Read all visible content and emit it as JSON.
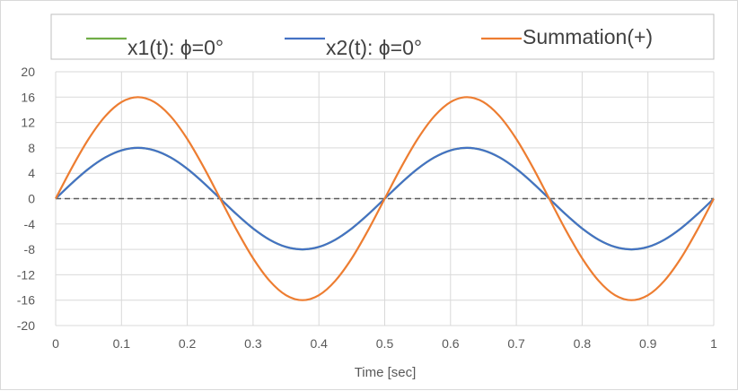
{
  "chart_data": {
    "type": "line",
    "title": "",
    "xlabel": "Time [sec]",
    "ylabel": "",
    "xlim": [
      0,
      1
    ],
    "ylim": [
      -20,
      20
    ],
    "xticks": [
      0,
      0.1,
      0.2,
      0.3,
      0.4,
      0.5,
      0.6,
      0.7,
      0.8,
      0.9,
      1
    ],
    "xtick_labels": [
      "0",
      "0.1",
      "0.2",
      "0.3",
      "0.4",
      "0.5",
      "0.6",
      "0.7",
      "0.8",
      "0.9",
      "1"
    ],
    "yticks": [
      20,
      16,
      12,
      8,
      4,
      0,
      -4,
      -8,
      -12,
      -16,
      -20
    ],
    "ytick_labels": [
      "20",
      "16",
      "12",
      "8",
      "4",
      "0",
      "-4",
      "-8",
      "-12",
      "-16",
      "-20"
    ],
    "grid": true,
    "legend_position": "top",
    "x": [
      0,
      0.025,
      0.05,
      0.075,
      0.1,
      0.125,
      0.15,
      0.175,
      0.2,
      0.225,
      0.25,
      0.275,
      0.3,
      0.325,
      0.35,
      0.375,
      0.4,
      0.425,
      0.45,
      0.475,
      0.5,
      0.525,
      0.55,
      0.575,
      0.6,
      0.625,
      0.65,
      0.675,
      0.7,
      0.725,
      0.75,
      0.775,
      0.8,
      0.825,
      0.85,
      0.875,
      0.9,
      0.925,
      0.95,
      0.975,
      1
    ],
    "series": [
      {
        "name": "x1(t): ϕ=0°",
        "color": "#70ad47",
        "values": [
          0,
          2.47,
          4.7,
          6.47,
          7.61,
          8,
          7.61,
          6.47,
          4.7,
          2.47,
          0,
          -2.47,
          -4.7,
          -6.47,
          -7.61,
          -8,
          -7.61,
          -6.47,
          -4.7,
          -2.47,
          0,
          2.47,
          4.7,
          6.47,
          7.61,
          8,
          7.61,
          6.47,
          4.7,
          2.47,
          0,
          -2.47,
          -4.7,
          -6.47,
          -7.61,
          -8,
          -7.61,
          -6.47,
          -4.7,
          -2.47,
          0
        ]
      },
      {
        "name": "x2(t): ϕ=0°",
        "color": "#4472c4",
        "values": [
          0,
          2.47,
          4.7,
          6.47,
          7.61,
          8,
          7.61,
          6.47,
          4.7,
          2.47,
          0,
          -2.47,
          -4.7,
          -6.47,
          -7.61,
          -8,
          -7.61,
          -6.47,
          -4.7,
          -2.47,
          0,
          2.47,
          4.7,
          6.47,
          7.61,
          8,
          7.61,
          6.47,
          4.7,
          2.47,
          0,
          -2.47,
          -4.7,
          -6.47,
          -7.61,
          -8,
          -7.61,
          -6.47,
          -4.7,
          -2.47,
          0
        ]
      },
      {
        "name": "Summation(+)",
        "color": "#ed7d31",
        "values": [
          0,
          4.94,
          9.4,
          12.94,
          15.22,
          16,
          15.22,
          12.94,
          9.4,
          4.94,
          0,
          -4.94,
          -9.4,
          -12.94,
          -15.22,
          -16,
          -15.22,
          -12.94,
          -9.4,
          -4.94,
          0,
          4.94,
          9.4,
          12.94,
          15.22,
          16,
          15.22,
          12.94,
          9.4,
          4.94,
          0,
          -4.94,
          -9.4,
          -12.94,
          -15.22,
          -16,
          -15.22,
          -12.94,
          -9.4,
          -4.94,
          0
        ]
      }
    ],
    "zero_line": {
      "value": 0,
      "color": "#595959",
      "style": "dashed"
    },
    "colors": {
      "grid": "#d9d9d9",
      "tick_text": "#595959",
      "legend_text": "#404040",
      "legend_border": "#bfbfbf"
    }
  }
}
